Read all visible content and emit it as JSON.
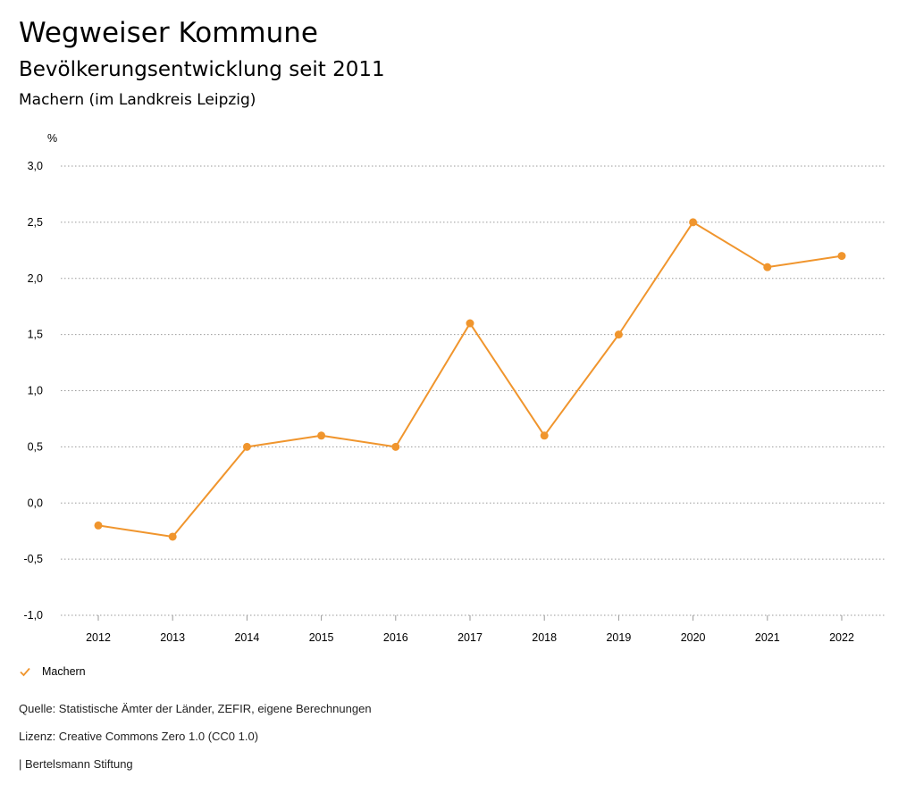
{
  "header": {
    "title": "Wegweiser Kommune",
    "subtitle": "Bevölkerungsentwicklung seit 2011",
    "region": "Machern (im Landkreis Leipzig)"
  },
  "chart_data": {
    "type": "line",
    "ylabel": "%",
    "ylim": [
      -1.0,
      3.0
    ],
    "yticks": [
      3.0,
      2.5,
      2.0,
      1.5,
      1.0,
      0.5,
      0.0,
      -0.5,
      -1.0
    ],
    "ytick_labels": [
      "3,0",
      "2,5",
      "2,0",
      "1,5",
      "1,0",
      "0,5",
      "0,0",
      "-0,5",
      "-1,0"
    ],
    "categories": [
      "2012",
      "2013",
      "2014",
      "2015",
      "2016",
      "2017",
      "2018",
      "2019",
      "2020",
      "2021",
      "2022"
    ],
    "series": [
      {
        "name": "Machern",
        "color": "#f0952d",
        "values": [
          -0.2,
          -0.3,
          0.5,
          0.6,
          0.5,
          1.6,
          0.6,
          1.5,
          2.5,
          2.1,
          2.2
        ]
      }
    ],
    "grid": "horizontal-dotted",
    "legend_position": "bottom-left"
  },
  "legend": {
    "label": "Machern",
    "icon": "checkmark-icon"
  },
  "footer": {
    "source": "Quelle: Statistische Ämter der Länder, ZEFIR, eigene Berechnungen",
    "license": "Lizenz: Creative Commons Zero 1.0 (CC0 1.0)",
    "publisher": "| Bertelsmann Stiftung"
  }
}
